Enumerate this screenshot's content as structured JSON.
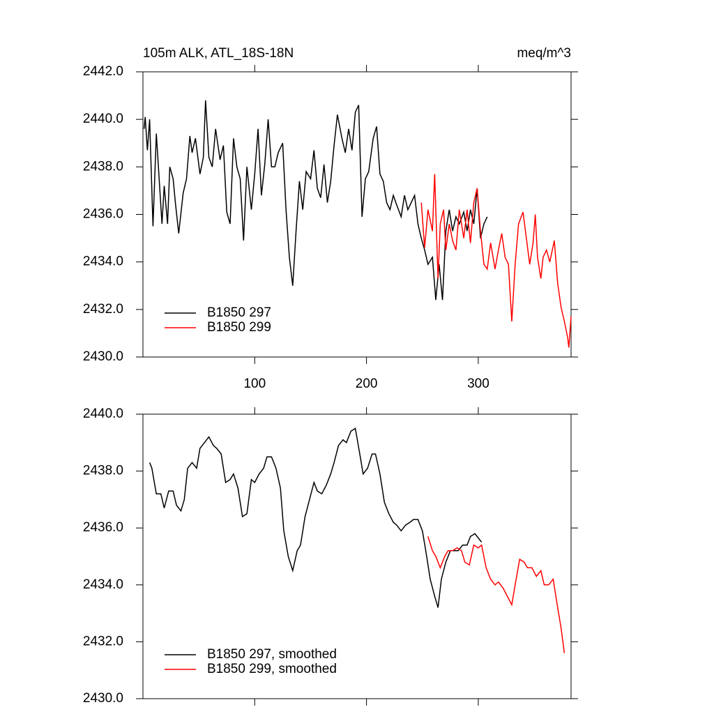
{
  "chart_data": [
    {
      "type": "line",
      "title": "105m ALK, ATL_18S-18N",
      "units": "meq/m^3",
      "xlim": [
        0,
        383
      ],
      "xticks": [
        100,
        200,
        300
      ],
      "xtick_labels": true,
      "ylim": [
        2430,
        2442
      ],
      "yticks": [
        {
          "value": 2430,
          "label": "2430.0"
        },
        {
          "value": 2432,
          "label": "2432.0"
        },
        {
          "value": 2434,
          "label": "2434.0"
        },
        {
          "value": 2436,
          "label": "2436.0"
        },
        {
          "value": 2438,
          "label": "2438.0"
        },
        {
          "value": 2440,
          "label": "2440.0"
        },
        {
          "value": 2442,
          "label": "2442.0"
        }
      ],
      "legend": "lower left",
      "series": [
        {
          "name": "B1850 297",
          "color": "#000000",
          "x": [
            1,
            2,
            4,
            6,
            9,
            12,
            17,
            19,
            22,
            24,
            27,
            29,
            32,
            36,
            39,
            42,
            44,
            47,
            51,
            54,
            56,
            59,
            62,
            65,
            69,
            72,
            75,
            78,
            81,
            84,
            87,
            90,
            93,
            97,
            100,
            103,
            106,
            109,
            112,
            115,
            118,
            121,
            125,
            128,
            131,
            134,
            137,
            140,
            143,
            146,
            150,
            153,
            156,
            159,
            162,
            165,
            168,
            171,
            174,
            178,
            181,
            184,
            187,
            190,
            193,
            196,
            199,
            202,
            206,
            209,
            212,
            215,
            218,
            221,
            224,
            227,
            231,
            234,
            237,
            240,
            243,
            246,
            249,
            252,
            255,
            259,
            262,
            265,
            268,
            271,
            274,
            277,
            280,
            283,
            287,
            290,
            293,
            296,
            299,
            302,
            305,
            308
          ],
          "values": [
            2439.6,
            2440.1,
            2438.7,
            2440.0,
            2435.5,
            2439.4,
            2435.6,
            2437.2,
            2435.6,
            2438.0,
            2437.5,
            2436.5,
            2435.2,
            2436.9,
            2437.5,
            2439.3,
            2438.6,
            2439.2,
            2437.7,
            2438.4,
            2440.8,
            2438.4,
            2438.0,
            2439.6,
            2438.3,
            2438.9,
            2436.1,
            2435.6,
            2439.2,
            2438.0,
            2437.5,
            2434.9,
            2438.0,
            2436.2,
            2437.7,
            2439.6,
            2436.8,
            2438.1,
            2440.0,
            2438.0,
            2438.0,
            2438.6,
            2439.0,
            2436.2,
            2434.2,
            2433.0,
            2435.3,
            2437.4,
            2436.2,
            2437.8,
            2437.5,
            2438.7,
            2437.1,
            2436.7,
            2438.1,
            2436.5,
            2437.4,
            2438.9,
            2440.2,
            2439.2,
            2438.6,
            2439.6,
            2438.7,
            2440.3,
            2440.6,
            2435.9,
            2437.5,
            2437.8,
            2439.2,
            2439.7,
            2437.7,
            2437.4,
            2436.5,
            2436.2,
            2436.8,
            2436.4,
            2435.9,
            2436.8,
            2436.2,
            2436.5,
            2436.8,
            2435.6,
            2435.0,
            2434.5,
            2433.9,
            2434.2,
            2432.4,
            2433.9,
            2432.4,
            2435.3,
            2436.2,
            2435.3,
            2435.9,
            2435.6,
            2436.1,
            2435.3,
            2436.2,
            2435.6,
            2437.1,
            2435.0,
            2435.6,
            2435.9
          ]
        },
        {
          "name": "B1850 299",
          "color": "#ff0000",
          "x": [
            249,
            252,
            255,
            259,
            261,
            264,
            266,
            269,
            271,
            274,
            277,
            280,
            283,
            287,
            290,
            293,
            296,
            299,
            302,
            305,
            308,
            311,
            315,
            318,
            321,
            324,
            327,
            330,
            333,
            336,
            340,
            343,
            346,
            349,
            351,
            353,
            356,
            358,
            361,
            364,
            368,
            371,
            374,
            377,
            380,
            381,
            383
          ],
          "values": [
            2436.5,
            2434.6,
            2436.2,
            2435.3,
            2437.7,
            2433.3,
            2435.6,
            2436.2,
            2434.5,
            2435.6,
            2434.9,
            2434.5,
            2436.2,
            2435.0,
            2436.2,
            2434.8,
            2436.5,
            2437.1,
            2435.3,
            2433.9,
            2433.7,
            2434.8,
            2433.7,
            2434.5,
            2435.2,
            2434.2,
            2433.9,
            2431.5,
            2433.9,
            2435.6,
            2436.1,
            2435.0,
            2433.9,
            2434.8,
            2436.0,
            2434.2,
            2433.3,
            2434.2,
            2434.5,
            2434.0,
            2434.9,
            2433.1,
            2432.1,
            2431.5,
            2430.8,
            2430.4,
            2431.7
          ]
        }
      ]
    },
    {
      "type": "line",
      "xlim": [
        0,
        383
      ],
      "xticks": [
        100,
        200,
        300
      ],
      "xtick_labels": false,
      "ylim": [
        2430,
        2440
      ],
      "yticks": [
        {
          "value": 2430,
          "label": "2430.0"
        },
        {
          "value": 2432,
          "label": "2432.0"
        },
        {
          "value": 2434,
          "label": "2434.0"
        },
        {
          "value": 2436,
          "label": "2436.0"
        },
        {
          "value": 2438,
          "label": "2438.0"
        },
        {
          "value": 2440,
          "label": "2440.0"
        }
      ],
      "legend": "lower left",
      "series": [
        {
          "name": "B1850 297, smoothed",
          "color": "#000000",
          "x": [
            6,
            8,
            12,
            16,
            19,
            23,
            27,
            30,
            34,
            37,
            40,
            44,
            48,
            51,
            55,
            59,
            63,
            66,
            70,
            74,
            78,
            81,
            85,
            89,
            93,
            97,
            100,
            104,
            108,
            111,
            115,
            119,
            123,
            126,
            130,
            134,
            138,
            141,
            145,
            149,
            153,
            156,
            160,
            164,
            168,
            171,
            175,
            179,
            182,
            186,
            190,
            194,
            197,
            201,
            205,
            208,
            212,
            216,
            220,
            224,
            227,
            231,
            235,
            239,
            242,
            246,
            250,
            253,
            257,
            261,
            264,
            267,
            271,
            275,
            278,
            282,
            286,
            290,
            293,
            297,
            301,
            303
          ],
          "values": [
            2438.3,
            2438.1,
            2437.2,
            2437.2,
            2436.7,
            2437.3,
            2437.3,
            2436.8,
            2436.6,
            2437.0,
            2438.1,
            2438.3,
            2438.1,
            2438.8,
            2439.0,
            2439.2,
            2438.9,
            2438.8,
            2438.6,
            2437.6,
            2437.7,
            2437.9,
            2437.4,
            2436.4,
            2436.5,
            2437.7,
            2437.6,
            2437.9,
            2438.1,
            2438.5,
            2438.5,
            2438.1,
            2437.4,
            2435.9,
            2435.0,
            2434.5,
            2435.2,
            2435.4,
            2436.4,
            2437.0,
            2437.6,
            2437.3,
            2437.2,
            2437.5,
            2437.9,
            2438.3,
            2438.9,
            2439.1,
            2439.0,
            2439.4,
            2439.5,
            2438.6,
            2437.9,
            2438.1,
            2438.6,
            2438.6,
            2437.9,
            2436.9,
            2436.5,
            2436.2,
            2436.1,
            2435.9,
            2436.1,
            2436.2,
            2436.3,
            2436.3,
            2435.9,
            2435.2,
            2434.2,
            2433.6,
            2433.2,
            2434.2,
            2434.8,
            2435.2,
            2435.2,
            2435.2,
            2435.4,
            2435.4,
            2435.7,
            2435.8,
            2435.6,
            2435.5
          ]
        },
        {
          "name": "B1850 299, smoothed",
          "color": "#ff0000",
          "x": [
            255,
            259,
            262,
            266,
            270,
            273,
            277,
            281,
            285,
            288,
            292,
            296,
            300,
            303,
            307,
            311,
            315,
            318,
            322,
            326,
            330,
            333,
            337,
            341,
            344,
            348,
            352,
            356,
            359,
            363,
            367,
            371,
            374,
            377
          ],
          "values": [
            2435.7,
            2435.2,
            2435.0,
            2434.6,
            2435.0,
            2435.2,
            2435.2,
            2435.3,
            2435.2,
            2434.8,
            2434.7,
            2435.4,
            2435.3,
            2435.4,
            2434.6,
            2434.2,
            2434.0,
            2434.1,
            2433.9,
            2433.6,
            2433.3,
            2434.0,
            2434.9,
            2434.8,
            2434.6,
            2434.6,
            2434.3,
            2434.5,
            2434.0,
            2434.0,
            2434.2,
            2433.2,
            2432.5,
            2431.6
          ]
        }
      ]
    }
  ]
}
